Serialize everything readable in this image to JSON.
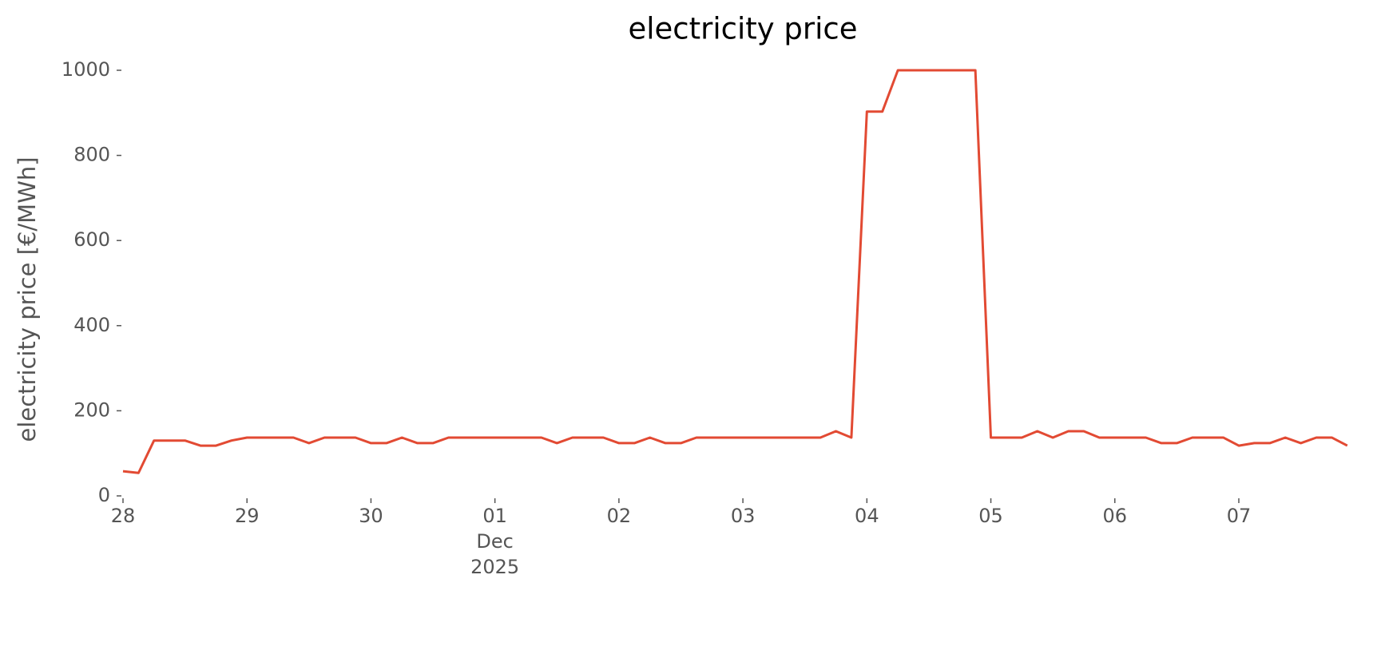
{
  "chart_data": {
    "type": "line",
    "title": "electricity price",
    "ylabel": "electricity price [€/MWh]",
    "x": [
      0,
      0.125,
      0.25,
      0.375,
      0.5,
      0.625,
      0.75,
      0.875,
      1,
      1.125,
      1.25,
      1.375,
      1.5,
      1.625,
      1.75,
      1.875,
      2,
      2.125,
      2.25,
      2.375,
      2.5,
      2.625,
      2.75,
      2.875,
      3,
      3.125,
      3.25,
      3.375,
      3.5,
      3.625,
      3.75,
      3.875,
      4,
      4.125,
      4.25,
      4.375,
      4.5,
      4.625,
      4.75,
      4.875,
      5,
      5.125,
      5.25,
      5.375,
      5.5,
      5.625,
      5.75,
      5.875,
      6,
      6.125,
      6.25,
      6.375,
      6.5,
      6.625,
      6.75,
      6.875,
      7,
      7.125,
      7.25,
      7.375,
      7.5,
      7.625,
      7.75,
      7.875,
      8,
      8.125,
      8.25,
      8.375,
      8.5,
      8.625,
      8.75,
      8.875,
      9,
      9.125,
      9.25,
      9.375,
      9.5,
      9.625,
      9.75,
      9.875
    ],
    "values": [
      58,
      54,
      130,
      130,
      130,
      118,
      118,
      130,
      137,
      137,
      137,
      137,
      124,
      137,
      137,
      137,
      124,
      124,
      137,
      124,
      124,
      137,
      137,
      137,
      137,
      137,
      137,
      137,
      124,
      137,
      137,
      137,
      124,
      124,
      137,
      124,
      124,
      137,
      137,
      137,
      137,
      137,
      137,
      137,
      137,
      137,
      152,
      137,
      903,
      903,
      1000,
      1000,
      1000,
      1000,
      1000,
      1000,
      137,
      137,
      137,
      152,
      137,
      152,
      152,
      137,
      137,
      137,
      137,
      124,
      124,
      137,
      137,
      137,
      118,
      124,
      124,
      137,
      124,
      137,
      137,
      118
    ],
    "color": "#e24a33",
    "xlim": [
      0,
      9.96
    ],
    "ylim": [
      0,
      1000
    ],
    "xticks": [
      {
        "value": 0,
        "label": "28"
      },
      {
        "value": 1,
        "label": "29"
      },
      {
        "value": 2,
        "label": "30"
      },
      {
        "value": 3,
        "label": "01\nDec\n2025"
      },
      {
        "value": 4,
        "label": "02"
      },
      {
        "value": 5,
        "label": "03"
      },
      {
        "value": 6,
        "label": "04"
      },
      {
        "value": 7,
        "label": "05"
      },
      {
        "value": 8,
        "label": "06"
      },
      {
        "value": 9,
        "label": "07"
      }
    ],
    "yticks": [
      0,
      200,
      400,
      600,
      800,
      1000
    ]
  }
}
